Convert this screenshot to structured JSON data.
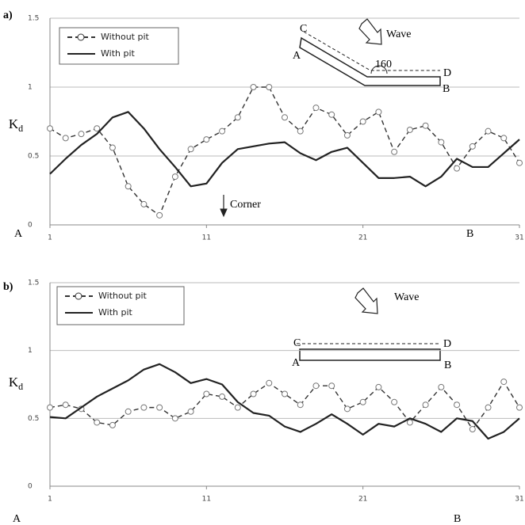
{
  "chart_data": [
    {
      "type": "line",
      "panel_label": "a)",
      "ylabel": "K",
      "ylabel_sub": "d",
      "x": [
        1,
        2,
        3,
        4,
        5,
        6,
        7,
        8,
        9,
        10,
        11,
        12,
        13,
        14,
        15,
        16,
        17,
        18,
        19,
        20,
        21,
        22,
        23,
        24,
        25,
        26,
        27,
        28,
        29,
        30,
        31
      ],
      "xlim": [
        1,
        31
      ],
      "xticks": [
        1,
        11,
        21,
        31
      ],
      "ylim": [
        0,
        1.5
      ],
      "yticks": [
        0,
        0.5,
        1,
        1.5
      ],
      "grid": true,
      "endpoint_labels": [
        "A",
        "B"
      ],
      "annotations": [
        "C",
        "A",
        "Wave",
        "160",
        "D",
        "B",
        "Corner"
      ],
      "series": [
        {
          "name": "Without pit",
          "color": "#333333",
          "dashed": true,
          "marker": "circle",
          "values": [
            0.7,
            0.63,
            0.66,
            0.7,
            0.56,
            0.28,
            0.15,
            0.07,
            0.35,
            0.55,
            0.62,
            0.68,
            0.78,
            1.0,
            1.0,
            0.78,
            0.68,
            0.85,
            0.8,
            0.65,
            0.75,
            0.82,
            0.53,
            0.69,
            0.72,
            0.6,
            0.41,
            0.57,
            0.68,
            0.63,
            0.45
          ]
        },
        {
          "name": "With pit",
          "color": "#222222",
          "dashed": false,
          "marker": "none",
          "values": [
            0.37,
            0.48,
            0.58,
            0.66,
            0.78,
            0.82,
            0.7,
            0.55,
            0.42,
            0.28,
            0.3,
            0.45,
            0.55,
            0.57,
            0.59,
            0.6,
            0.52,
            0.47,
            0.53,
            0.56,
            0.45,
            0.34,
            0.34,
            0.35,
            0.28,
            0.35,
            0.48,
            0.42,
            0.42,
            0.52,
            0.62
          ]
        }
      ]
    },
    {
      "type": "line",
      "panel_label": "b)",
      "ylabel": "K",
      "ylabel_sub": "d",
      "x": [
        1,
        2,
        3,
        4,
        5,
        6,
        7,
        8,
        9,
        10,
        11,
        12,
        13,
        14,
        15,
        16,
        17,
        18,
        19,
        20,
        21,
        22,
        23,
        24,
        25,
        26,
        27,
        28,
        29,
        30,
        31
      ],
      "xlim": [
        1,
        31
      ],
      "xticks": [
        1,
        11,
        21,
        31
      ],
      "ylim": [
        0,
        1.5
      ],
      "yticks": [
        0,
        0.5,
        1,
        1.5
      ],
      "grid": true,
      "endpoint_labels": [
        "A",
        "B"
      ],
      "annotations": [
        "C",
        "A",
        "Wave",
        "D",
        "B"
      ],
      "series": [
        {
          "name": "Without pit",
          "color": "#333333",
          "dashed": true,
          "marker": "circle",
          "values": [
            0.58,
            0.6,
            0.57,
            0.47,
            0.45,
            0.55,
            0.58,
            0.58,
            0.5,
            0.55,
            0.68,
            0.66,
            0.58,
            0.68,
            0.76,
            0.68,
            0.6,
            0.74,
            0.74,
            0.57,
            0.62,
            0.73,
            0.62,
            0.47,
            0.6,
            0.73,
            0.6,
            0.42,
            0.58,
            0.77,
            0.58
          ]
        },
        {
          "name": "With pit",
          "color": "#222222",
          "dashed": false,
          "marker": "none",
          "values": [
            0.51,
            0.5,
            0.58,
            0.66,
            0.72,
            0.78,
            0.86,
            0.9,
            0.84,
            0.76,
            0.79,
            0.75,
            0.62,
            0.54,
            0.52,
            0.44,
            0.4,
            0.46,
            0.53,
            0.46,
            0.38,
            0.46,
            0.44,
            0.5,
            0.46,
            0.4,
            0.5,
            0.48,
            0.35,
            0.4,
            0.5
          ]
        }
      ]
    }
  ]
}
